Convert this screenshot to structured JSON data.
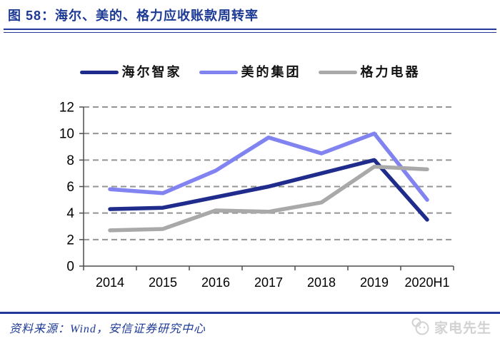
{
  "header": {
    "title": "图 58：海尔、美的、格力应收账款周转率"
  },
  "footer": {
    "source": "资料来源：Wind，安信证券研究中心",
    "watermark": "家电先生"
  },
  "colors": {
    "title_navy": "#1D3A94",
    "rule_navy": "#23379B",
    "axis": "#4D4D4D",
    "gridline": "#949494",
    "watermark_gray": "#D2D2D2"
  },
  "chart_data": {
    "type": "line",
    "categories": [
      "2014",
      "2015",
      "2016",
      "2017",
      "2018",
      "2019",
      "2020H1"
    ],
    "series": [
      {
        "name": "海尔智家",
        "color": "#1F2C8C",
        "values": [
          4.3,
          4.4,
          5.2,
          6.0,
          7.0,
          8.0,
          3.5
        ]
      },
      {
        "name": "美的集团",
        "color": "#8183F1",
        "values": [
          5.8,
          5.5,
          7.2,
          9.7,
          8.5,
          10.0,
          5.0
        ]
      },
      {
        "name": "格力电器",
        "color": "#A9A9A9",
        "values": [
          2.7,
          2.8,
          4.2,
          4.1,
          4.8,
          7.5,
          7.3
        ]
      }
    ],
    "title": "海尔、美的、格力应收账款周转率",
    "xlabel": "",
    "ylabel": "",
    "ylim": [
      0,
      12
    ],
    "ytick_step": 2,
    "grid": "horizontal-dashed",
    "legend_position": "top"
  }
}
